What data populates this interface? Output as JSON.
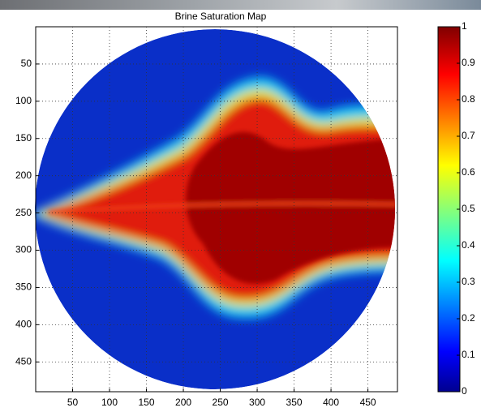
{
  "chart_data": {
    "type": "heatmap",
    "title": "Brine Saturation Map",
    "xlim": [
      0,
      490
    ],
    "xticks": [
      50,
      100,
      150,
      200,
      250,
      300,
      350,
      400,
      450
    ],
    "ylim": [
      0,
      490
    ],
    "yticks": [
      50,
      100,
      150,
      200,
      250,
      300,
      350,
      400,
      450
    ],
    "y_reversed": true,
    "grid": true,
    "colormap": "jet",
    "colorbar": {
      "lim": [
        0,
        1
      ],
      "ticks": [
        0,
        0.1,
        0.2,
        0.3,
        0.4,
        0.5,
        0.6,
        0.7,
        0.8,
        0.9,
        1
      ]
    }
  }
}
